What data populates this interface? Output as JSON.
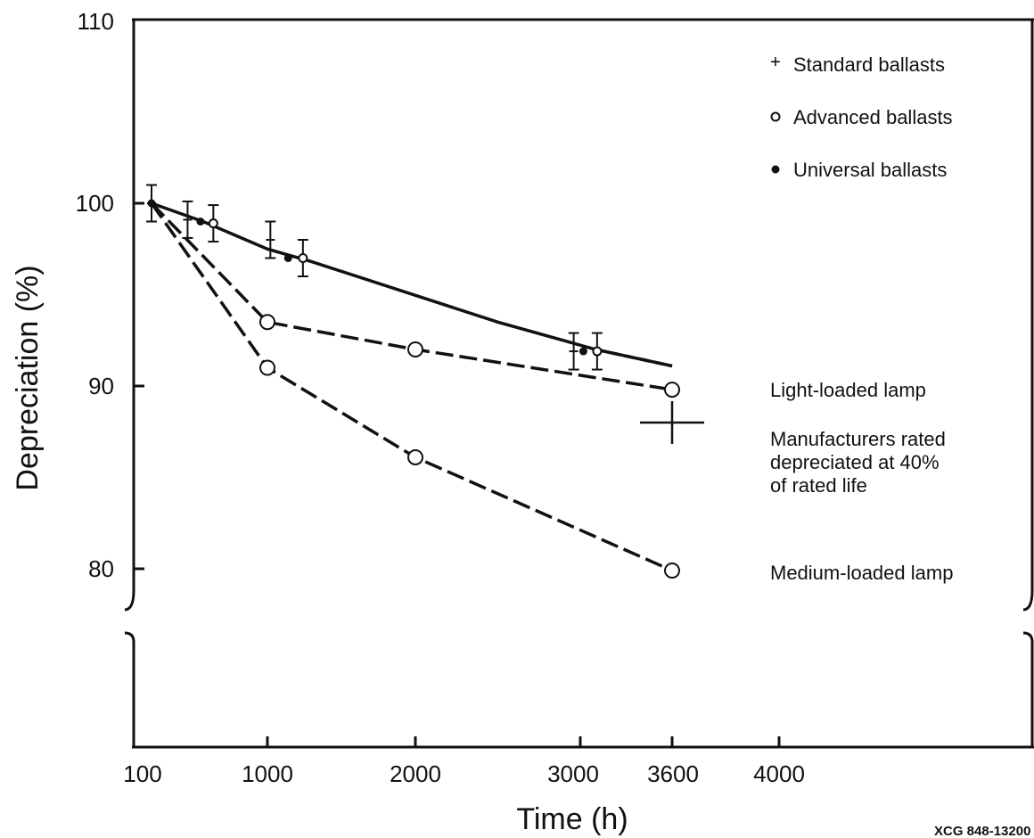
{
  "chart_data": {
    "type": "line",
    "xlabel": "Time (h)",
    "ylabel": "Depreciation (%)",
    "x_ticks": [
      "100",
      "1000",
      "2000",
      "3000",
      "3600",
      "4000"
    ],
    "y_ticks": [
      "110",
      "100",
      "90",
      "80"
    ],
    "xlim": [
      100,
      4000
    ],
    "ylim": [
      80,
      110
    ],
    "figure_code": "XCG 848-13200",
    "legend": [
      {
        "symbol": "+",
        "label": "Standard ballasts"
      },
      {
        "symbol": "○",
        "label": "Advanced ballasts"
      },
      {
        "symbol": "●",
        "label": "Universal ballasts"
      }
    ],
    "series": [
      {
        "name": "Light-loaded lamp",
        "style": "long-dash",
        "marker": "open-circle",
        "points": [
          [
            100,
            100
          ],
          [
            1000,
            93.5
          ],
          [
            2000,
            92
          ],
          [
            3600,
            89.8
          ]
        ]
      },
      {
        "name": "Medium-loaded lamp",
        "style": "long-dash",
        "marker": "open-circle",
        "points": [
          [
            100,
            100
          ],
          [
            1000,
            91
          ],
          [
            2000,
            86.1
          ],
          [
            3600,
            79.9
          ]
        ]
      },
      {
        "style": "solid",
        "points": [
          [
            100,
            100
          ],
          [
            500,
            99
          ],
          [
            1000,
            97.5
          ],
          [
            1300,
            96.8
          ],
          [
            2500,
            93.5
          ],
          [
            3100,
            92
          ],
          [
            3600,
            91.1
          ]
        ]
      },
      {
        "style": "dashed",
        "points": [
          [
            3100,
            92
          ],
          [
            3600,
            91.1
          ]
        ]
      }
    ],
    "ballast_groups": [
      {
        "standard": {
          "x": 100,
          "y": 100,
          "err": 1
        },
        "universal": {
          "x": 100,
          "y": 100
        }
      },
      {
        "standard": {
          "x": 380,
          "y": 99.1,
          "err": 1
        },
        "universal": {
          "x": 480,
          "y": 99
        },
        "advanced": {
          "x": 580,
          "y": 98.9,
          "err": 1
        }
      },
      {
        "standard": {
          "x": 1020,
          "y": 98,
          "err": 1
        },
        "universal": {
          "x": 1140,
          "y": 97
        },
        "advanced": {
          "x": 1240,
          "y": 97,
          "err": 1
        }
      },
      {
        "standard": {
          "x": 2960,
          "y": 91.9,
          "err": 1
        },
        "universal": {
          "x": 3020,
          "y": 91.9
        },
        "advanced": {
          "x": 3110,
          "y": 91.9,
          "err": 1
        }
      }
    ],
    "rated_marker": {
      "x": 3600,
      "y": 88,
      "label": "Manufacturers rated depreciated at 40% of rated life"
    },
    "axis_break": true
  }
}
